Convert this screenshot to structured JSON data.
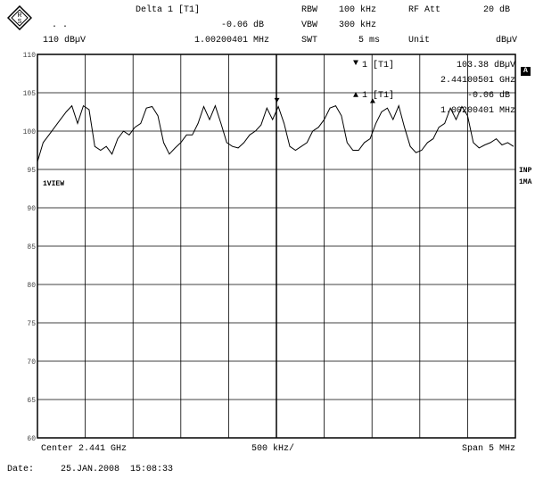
{
  "header": {
    "marker_title": "Delta 1 [T1]",
    "marker_delta_db": "-0.06 dB",
    "marker_delta_freq": "1.00200401 MHz",
    "ref_level": "110 dBµV",
    "dots": ". .",
    "rbw_label": "RBW",
    "rbw_value": "100 kHz",
    "vbw_label": "VBW",
    "vbw_value": "300 kHz",
    "swt_label": "SWT",
    "swt_value": "5 ms",
    "rfatt_label": "RF Att",
    "rfatt_value": "20 dB",
    "unit_label": "Unit",
    "unit_value": "dBµV"
  },
  "markers": {
    "m1_label": "1 [T1]",
    "m1_level": "103.38 dBµV",
    "m1_freq": "2.44100501 GHz",
    "m2_label": "1 [T1]",
    "m2_level": "-0.06 dB",
    "m2_freq": "1.00200401 MHz"
  },
  "side": {
    "a_badge": "A",
    "view_label": "1VIEW",
    "inp_label": "INP",
    "ma_label": "1MA"
  },
  "footer": {
    "center": "Center 2.441 GHz",
    "per_div": "500 kHz/",
    "span": "Span 5 MHz",
    "date_label": "Date:",
    "date_value": "25.JAN.2008  15:08:33"
  },
  "chart_data": {
    "type": "line",
    "title": "",
    "xlabel": "",
    "ylabel": "",
    "ylim": [
      60,
      110
    ],
    "xlim": [
      2438.5,
      2443.5
    ],
    "x_unit": "MHz",
    "y_ticks": [
      60,
      65,
      70,
      75,
      80,
      85,
      90,
      95,
      100,
      105,
      110
    ],
    "grid": true,
    "markers": [
      {
        "name": "1 [T1]",
        "x": 2441.005,
        "y": 103.38
      },
      {
        "name": "Delta 1",
        "x": 2442.007,
        "y": 103.32
      }
    ],
    "series": [
      {
        "name": "1VIEW",
        "x": [
          2438.5,
          2438.56,
          2438.62,
          2438.68,
          2438.74,
          2438.8,
          2438.86,
          2438.92,
          2438.98,
          2439.04,
          2439.1,
          2439.16,
          2439.22,
          2439.28,
          2439.34,
          2439.4,
          2439.46,
          2439.52,
          2439.58,
          2439.64,
          2439.7,
          2439.76,
          2439.82,
          2439.88,
          2439.94,
          2440.0,
          2440.06,
          2440.12,
          2440.18,
          2440.24,
          2440.3,
          2440.36,
          2440.42,
          2440.48,
          2440.54,
          2440.6,
          2440.66,
          2440.72,
          2440.78,
          2440.84,
          2440.9,
          2440.96,
          2441.02,
          2441.08,
          2441.14,
          2441.2,
          2441.26,
          2441.32,
          2441.38,
          2441.44,
          2441.5,
          2441.56,
          2441.62,
          2441.68,
          2441.74,
          2441.8,
          2441.86,
          2441.92,
          2441.98,
          2442.04,
          2442.1,
          2442.16,
          2442.22,
          2442.28,
          2442.34,
          2442.4,
          2442.46,
          2442.52,
          2442.58,
          2442.64,
          2442.7,
          2442.76,
          2442.82,
          2442.88,
          2442.94,
          2443.0,
          2443.06,
          2443.12,
          2443.18,
          2443.24,
          2443.3,
          2443.36,
          2443.42,
          2443.48
        ],
        "values": [
          96.0,
          98.5,
          99.5,
          100.5,
          101.5,
          102.5,
          103.3,
          101.0,
          103.3,
          102.8,
          98.0,
          97.5,
          98.0,
          97.0,
          99.0,
          100.0,
          99.5,
          100.5,
          101.0,
          103.0,
          103.2,
          102.0,
          98.5,
          97.0,
          97.8,
          98.5,
          99.5,
          99.5,
          101.0,
          103.2,
          101.5,
          103.3,
          101.0,
          98.5,
          98.0,
          97.8,
          98.5,
          99.5,
          100.0,
          100.8,
          103.0,
          101.5,
          103.2,
          101.0,
          98.0,
          97.5,
          98.0,
          98.5,
          100.0,
          100.5,
          101.5,
          103.0,
          103.3,
          102.0,
          98.5,
          97.5,
          97.5,
          98.5,
          99.0,
          101.0,
          102.5,
          103.0,
          101.5,
          103.3,
          100.5,
          98.0,
          97.2,
          97.5,
          98.5,
          99.0,
          100.5,
          101.0,
          103.0,
          101.5,
          103.2,
          102.0,
          98.5,
          97.8,
          98.2,
          98.5,
          99.0,
          98.2,
          98.5,
          98.0
        ]
      }
    ]
  }
}
